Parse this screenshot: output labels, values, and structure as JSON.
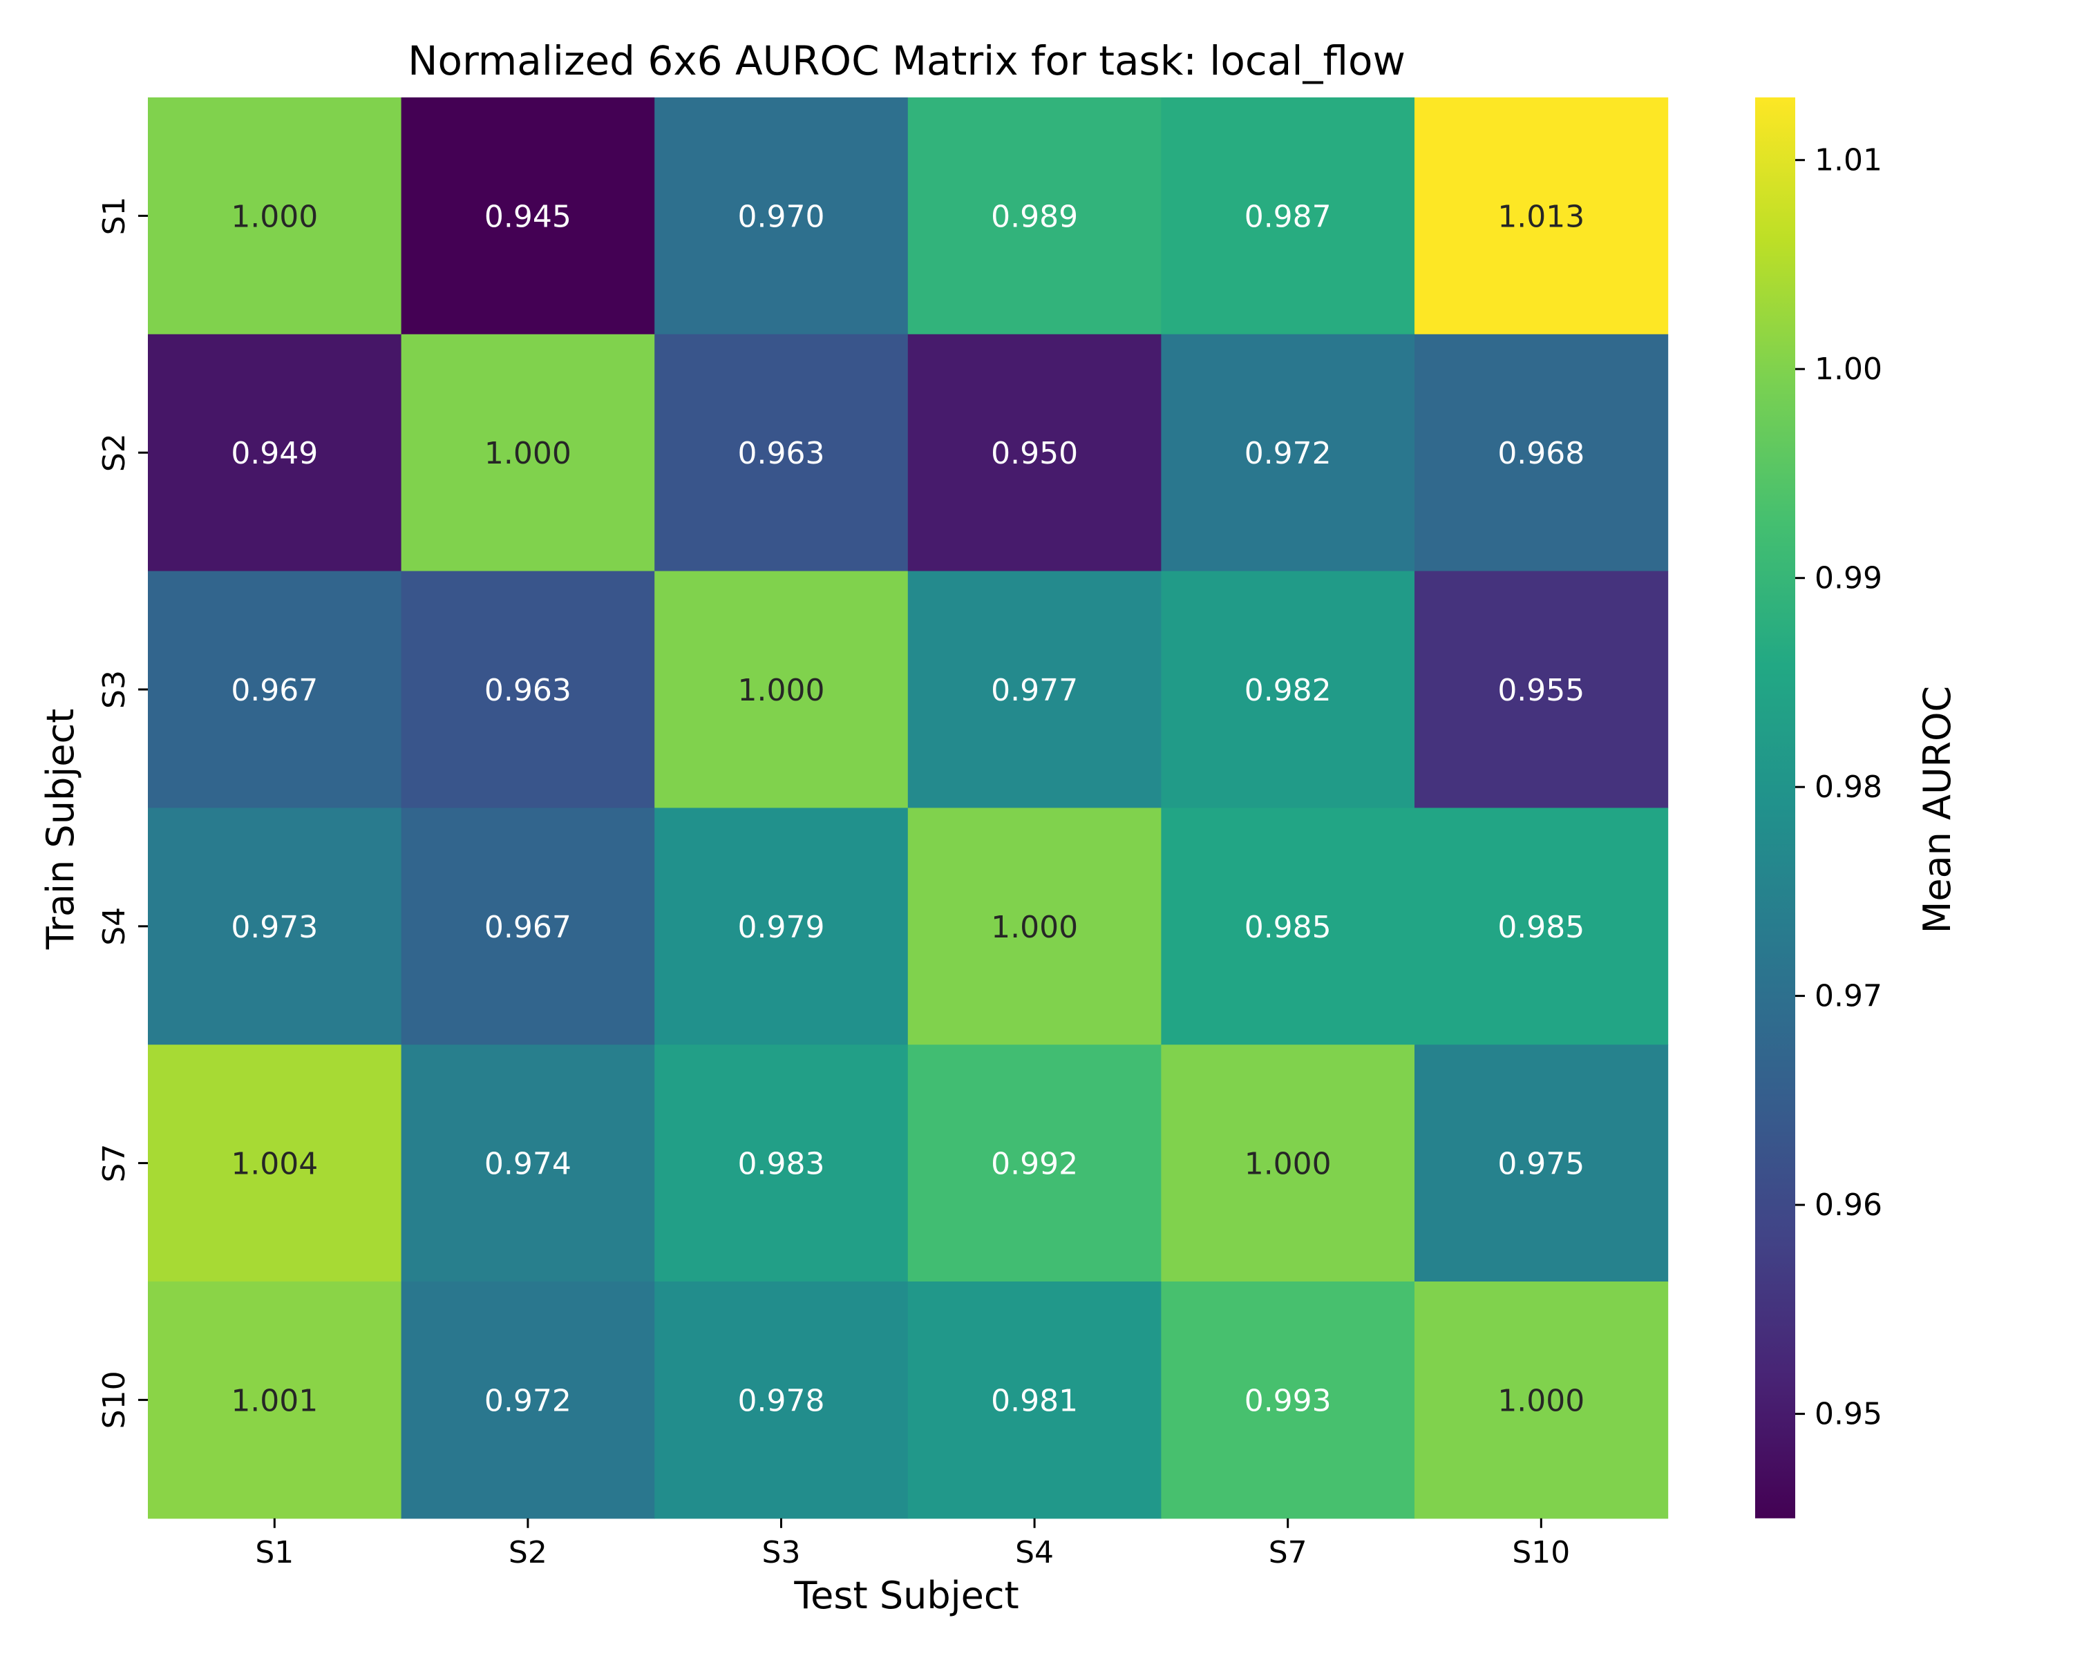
{
  "chart_data": {
    "type": "heatmap",
    "title": "Normalized 6x6 AUROC Matrix for task: local_flow",
    "xlabel": "Test Subject",
    "ylabel": "Train Subject",
    "x_categories": [
      "S1",
      "S2",
      "S3",
      "S4",
      "S7",
      "S10"
    ],
    "y_categories": [
      "S1",
      "S2",
      "S3",
      "S4",
      "S7",
      "S10"
    ],
    "values": [
      [
        1.0,
        0.945,
        0.97,
        0.989,
        0.987,
        1.013
      ],
      [
        0.949,
        1.0,
        0.963,
        0.95,
        0.972,
        0.968
      ],
      [
        0.967,
        0.963,
        1.0,
        0.977,
        0.982,
        0.955
      ],
      [
        0.973,
        0.967,
        0.979,
        1.0,
        0.985,
        0.985
      ],
      [
        1.004,
        0.974,
        0.983,
        0.992,
        1.0,
        0.975
      ],
      [
        1.001,
        0.972,
        0.978,
        0.981,
        0.993,
        1.0
      ]
    ],
    "value_format": "3 decimals",
    "colormap": "viridis",
    "color_range": [
      0.945,
      1.013
    ],
    "colorbar": {
      "label": "Mean AUROC",
      "ticks": [
        0.95,
        0.96,
        0.97,
        0.98,
        0.99,
        1.0,
        1.01
      ],
      "tick_labels": [
        "0.95",
        "0.96",
        "0.97",
        "0.98",
        "0.99",
        "1.00",
        "1.01"
      ]
    },
    "text_colors": {
      "dark": "#262626",
      "light": "#ffffff"
    }
  }
}
